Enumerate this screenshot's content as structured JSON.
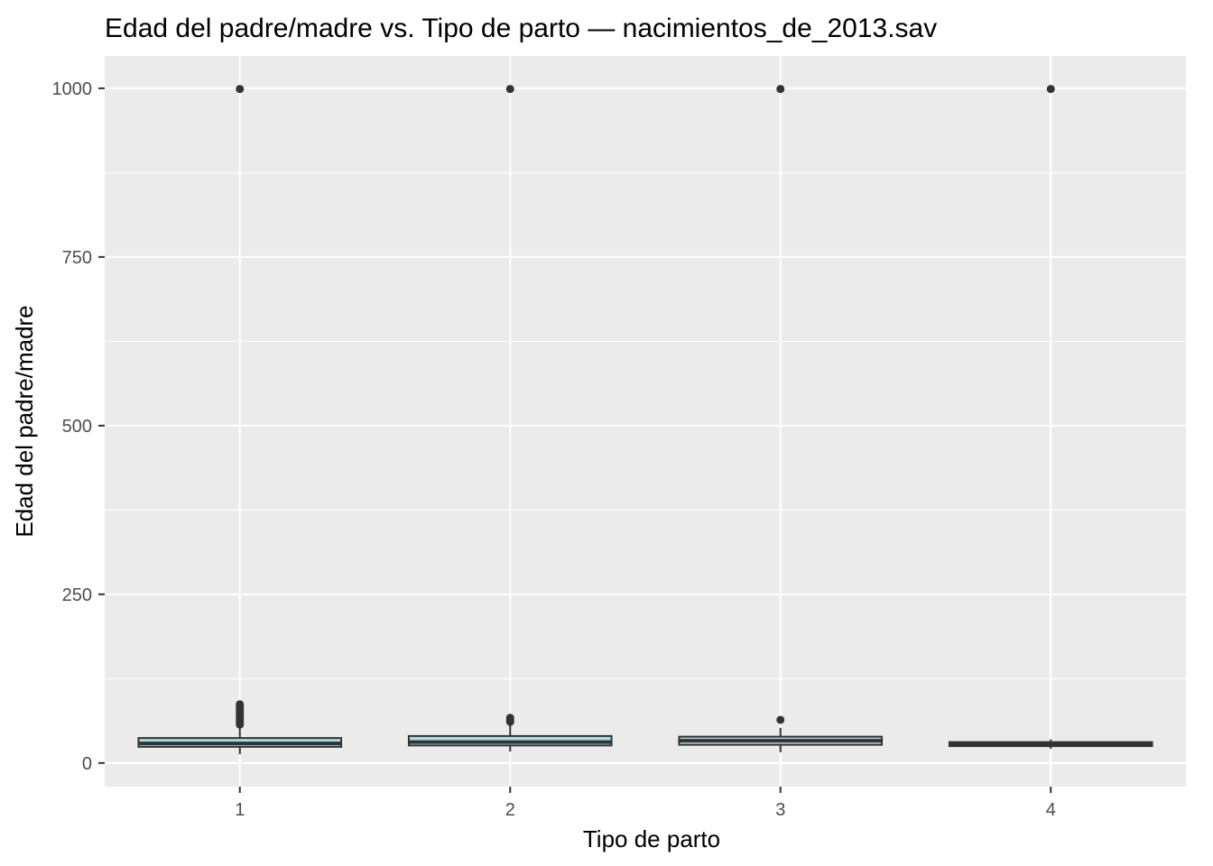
{
  "chart_data": {
    "type": "box",
    "title": "Edad del padre/madre vs. Tipo de parto — nacimientos_de_2013.sav",
    "xlabel": "Tipo de parto",
    "ylabel": "Edad del padre/madre",
    "categories": [
      "1",
      "2",
      "3",
      "4"
    ],
    "ylim": [
      -35,
      1048
    ],
    "yticks": [
      0,
      250,
      500,
      750,
      1000
    ],
    "grid": true,
    "colors": {
      "panel": "#ebebeb",
      "grid": "#ffffff",
      "box_fill": "#add8e6",
      "box_stroke": "#333333",
      "outlier": "#333333",
      "tick_text": "#4d4d4d",
      "text": "#000000"
    },
    "boxes": [
      {
        "category": "1",
        "min": 13,
        "q1": 24,
        "median": 29,
        "q3": 37,
        "max": 56,
        "outliers": [
          57,
          60,
          63,
          66,
          69,
          72,
          75,
          78,
          81,
          84,
          87,
          999
        ]
      },
      {
        "category": "2",
        "min": 17,
        "q1": 26,
        "median": 31,
        "q3": 40,
        "max": 59,
        "outliers": [
          61,
          64,
          67,
          999
        ]
      },
      {
        "category": "3",
        "min": 16,
        "q1": 27,
        "median": 33,
        "q3": 39,
        "max": 52,
        "outliers": [
          64,
          999
        ]
      },
      {
        "category": "4",
        "min": 21,
        "q1": 25,
        "median": 28,
        "q3": 31,
        "max": 35,
        "outliers": [
          999
        ]
      }
    ]
  }
}
